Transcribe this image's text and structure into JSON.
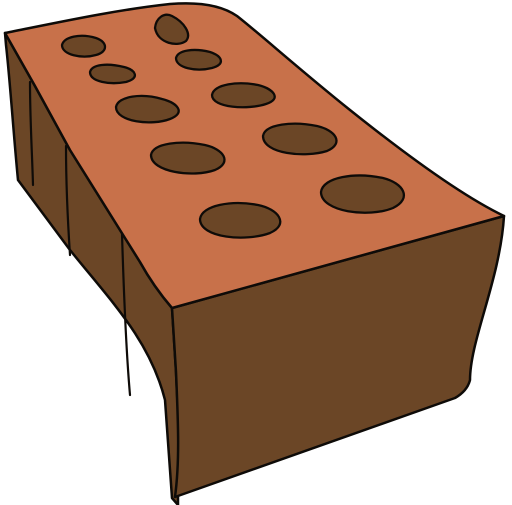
{
  "illustration": {
    "subject": "brick-icon",
    "colors": {
      "top_face": "#C8714A",
      "side_face": "#6B4626",
      "holes": "#6B4626",
      "outline": "#0E0B08",
      "background": "#FFFFFF"
    },
    "hole_count": 10
  }
}
